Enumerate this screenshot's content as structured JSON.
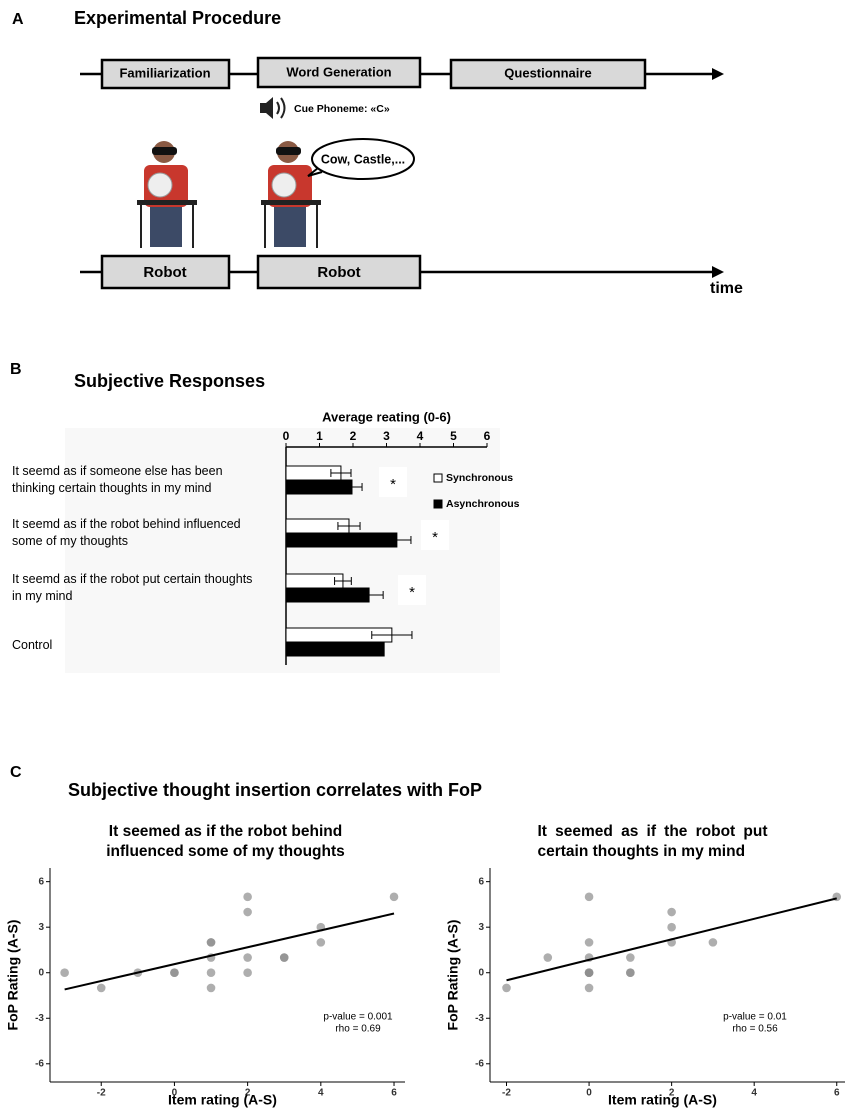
{
  "panel_labels": [
    "A",
    "B",
    "C"
  ],
  "procedure": {
    "title": "Experimental Procedure",
    "steps": [
      "Familiarization",
      "Word Generation",
      "Questionnaire"
    ],
    "cue": "Cue Phoneme: «C»",
    "speech": "Cow, Castle,...",
    "conditions": [
      "Robot",
      "Robot"
    ],
    "axis_label": "time"
  },
  "section_titles": {
    "b": "Subjective Responses",
    "c": "Subjective thought insertion correlates with FoP"
  },
  "chart_data": [
    {
      "type": "bar",
      "orientation": "horizontal",
      "xlabel": "Average reating (0-6)",
      "categories": [
        "It seemd as if someone else has been thinking certain thoughts in my mind",
        "It seemd as if the robot behind influenced some of my thoughts",
        "It seemd as if the robot put certain thoughts in my mind",
        "Control"
      ],
      "xlim": [
        0,
        6
      ],
      "xticks": [
        0,
        1,
        2,
        3,
        4,
        5,
        6
      ],
      "series": [
        {
          "name": "Synchronous",
          "color": "#ffffff",
          "values": [
            1.64,
            1.88,
            1.7,
            3.16
          ],
          "errors": [
            0.3,
            0.33,
            0.25,
            0.6
          ]
        },
        {
          "name": "Asynchronous",
          "color": "#000000",
          "values": [
            1.97,
            3.31,
            2.48,
            2.93
          ],
          "errors": [
            0.3,
            0.42,
            0.42,
            null
          ]
        }
      ],
      "annotations": [
        "*",
        "*",
        "*"
      ],
      "legend": "right"
    },
    {
      "type": "scatter",
      "title": "It seemed as if the robot behind influenced some of my thoughts",
      "xlabel": "Item rating (A-S)",
      "ylabel": "FoP Rating (A-S)",
      "x": [
        -3,
        -2,
        -1,
        0,
        0,
        1,
        1,
        1,
        1,
        1,
        2,
        2,
        2,
        2,
        3,
        3,
        4,
        4,
        6
      ],
      "y": [
        0,
        -1,
        0,
        0,
        0,
        2,
        2,
        1,
        0,
        -1,
        5,
        4,
        1,
        0,
        1,
        1,
        3,
        2,
        5
      ],
      "color": "#8c8c8c",
      "xlim": [
        -3.4,
        6.3
      ],
      "ylim": [
        -7.2,
        6.9
      ],
      "xticks": [
        -2,
        0,
        2,
        4,
        6
      ],
      "yticks": [
        -6,
        -3,
        0,
        3,
        6
      ],
      "fit": {
        "x": [
          -3,
          6
        ],
        "y": [
          -1.1,
          3.9
        ]
      },
      "annotations": [
        "p-value = 0.001",
        "rho = 0.69"
      ]
    },
    {
      "type": "scatter",
      "title": "It seemed as if the robot put certain thoughts in my mind",
      "xlabel": "Item rating (A-S)",
      "ylabel": "FoP Rating (A-S)",
      "x": [
        -2,
        -1,
        0,
        0,
        0,
        0,
        0,
        0,
        0,
        1,
        1,
        1,
        2,
        2,
        2,
        3,
        6
      ],
      "y": [
        -1,
        1,
        5,
        2,
        1,
        0,
        0,
        0,
        -1,
        1,
        0,
        0,
        4,
        3,
        2,
        2,
        5
      ],
      "color": "#8c8c8c",
      "xlim": [
        -2.4,
        6.2
      ],
      "ylim": [
        -7.2,
        6.9
      ],
      "xticks": [
        -2,
        0,
        2,
        4,
        6
      ],
      "yticks": [
        -6,
        -3,
        0,
        3,
        6
      ],
      "fit": {
        "x": [
          -2,
          6
        ],
        "y": [
          -0.5,
          4.9
        ]
      },
      "annotations": [
        "p-value = 0.01",
        "rho = 0.56"
      ]
    }
  ]
}
